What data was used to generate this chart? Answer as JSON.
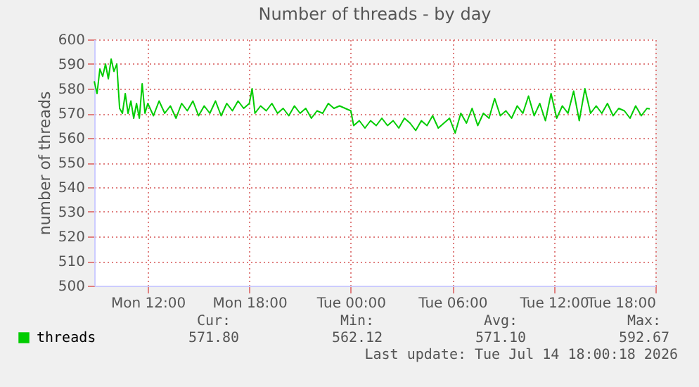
{
  "chart_data": {
    "type": "line",
    "title": "Number of threads - by day",
    "ylabel": "number of threads",
    "x": [
      "2026-07-13T08:50",
      "2026-07-13T09:00",
      "2026-07-13T09:10",
      "2026-07-13T09:20",
      "2026-07-13T09:30",
      "2026-07-13T09:40",
      "2026-07-13T09:50",
      "2026-07-13T10:00",
      "2026-07-13T10:10",
      "2026-07-13T10:20",
      "2026-07-13T10:30",
      "2026-07-13T10:40",
      "2026-07-13T10:50",
      "2026-07-13T11:00",
      "2026-07-13T11:10",
      "2026-07-13T11:20",
      "2026-07-13T11:30",
      "2026-07-13T11:40",
      "2026-07-13T11:50",
      "2026-07-13T12:00",
      "2026-07-13T12:20",
      "2026-07-13T12:40",
      "2026-07-13T13:00",
      "2026-07-13T13:20",
      "2026-07-13T13:40",
      "2026-07-13T14:00",
      "2026-07-13T14:20",
      "2026-07-13T14:40",
      "2026-07-13T15:00",
      "2026-07-13T15:20",
      "2026-07-13T15:40",
      "2026-07-13T16:00",
      "2026-07-13T16:20",
      "2026-07-13T16:40",
      "2026-07-13T17:00",
      "2026-07-13T17:20",
      "2026-07-13T17:40",
      "2026-07-13T18:00",
      "2026-07-13T18:10",
      "2026-07-13T18:20",
      "2026-07-13T18:40",
      "2026-07-13T19:00",
      "2026-07-13T19:20",
      "2026-07-13T19:40",
      "2026-07-13T20:00",
      "2026-07-13T20:20",
      "2026-07-13T20:40",
      "2026-07-13T21:00",
      "2026-07-13T21:20",
      "2026-07-13T21:40",
      "2026-07-13T22:00",
      "2026-07-13T22:20",
      "2026-07-13T22:40",
      "2026-07-13T23:00",
      "2026-07-13T23:20",
      "2026-07-13T23:40",
      "2026-07-14T00:00",
      "2026-07-14T00:10",
      "2026-07-14T00:30",
      "2026-07-14T00:50",
      "2026-07-14T01:10",
      "2026-07-14T01:30",
      "2026-07-14T01:50",
      "2026-07-14T02:10",
      "2026-07-14T02:30",
      "2026-07-14T02:50",
      "2026-07-14T03:10",
      "2026-07-14T03:30",
      "2026-07-14T03:50",
      "2026-07-14T04:10",
      "2026-07-14T04:30",
      "2026-07-14T04:50",
      "2026-07-14T05:10",
      "2026-07-14T05:30",
      "2026-07-14T05:50",
      "2026-07-14T06:10",
      "2026-07-14T06:30",
      "2026-07-14T06:50",
      "2026-07-14T07:10",
      "2026-07-14T07:30",
      "2026-07-14T07:50",
      "2026-07-14T08:10",
      "2026-07-14T08:30",
      "2026-07-14T08:50",
      "2026-07-14T09:10",
      "2026-07-14T09:30",
      "2026-07-14T09:50",
      "2026-07-14T10:10",
      "2026-07-14T10:30",
      "2026-07-14T10:50",
      "2026-07-14T11:10",
      "2026-07-14T11:30",
      "2026-07-14T11:50",
      "2026-07-14T12:10",
      "2026-07-14T12:30",
      "2026-07-14T12:50",
      "2026-07-14T13:10",
      "2026-07-14T13:30",
      "2026-07-14T13:50",
      "2026-07-14T14:10",
      "2026-07-14T14:30",
      "2026-07-14T14:50",
      "2026-07-14T15:10",
      "2026-07-14T15:30",
      "2026-07-14T15:50",
      "2026-07-14T16:10",
      "2026-07-14T16:30",
      "2026-07-14T16:50",
      "2026-07-14T17:10",
      "2026-07-14T17:30",
      "2026-07-14T17:40"
    ],
    "series": [
      {
        "name": "threads",
        "color": "#00cc00",
        "values": [
          583,
          578,
          588,
          585,
          590,
          584,
          592,
          587,
          590,
          572,
          570,
          578,
          570,
          575,
          568,
          574,
          568,
          582,
          570,
          574,
          569,
          575,
          570,
          573,
          568,
          574,
          571,
          575,
          569,
          573,
          570,
          575,
          569,
          574,
          571,
          575,
          572,
          574,
          580,
          570,
          573,
          571,
          574,
          570,
          572,
          569,
          573,
          570,
          572,
          568,
          571,
          570,
          574,
          572,
          573,
          572,
          571,
          565,
          567,
          564,
          567,
          565,
          568,
          565,
          567,
          564,
          568,
          566,
          563,
          567,
          565,
          569,
          564,
          566,
          568,
          562,
          570,
          566,
          572,
          565,
          570,
          568,
          576,
          569,
          571,
          568,
          573,
          570,
          577,
          569,
          574,
          567,
          578,
          568,
          573,
          570,
          579,
          567,
          580,
          570,
          573,
          570,
          574,
          569,
          572,
          571,
          568,
          573,
          569,
          572,
          571.8
        ]
      }
    ],
    "xlim": [
      "2026-07-13T08:50",
      "2026-07-14T18:00"
    ],
    "xticks": [
      {
        "value": "2026-07-13T12:00",
        "label": "Mon 12:00"
      },
      {
        "value": "2026-07-13T18:00",
        "label": "Mon 18:00"
      },
      {
        "value": "2026-07-14T00:00",
        "label": "Tue 00:00"
      },
      {
        "value": "2026-07-14T06:00",
        "label": "Tue 06:00"
      },
      {
        "value": "2026-07-14T12:00",
        "label": "Tue 12:00"
      },
      {
        "value": "2026-07-14T18:00",
        "label": "Tue 18:00"
      }
    ],
    "ylim": [
      500,
      600
    ],
    "yticks": [
      500,
      510,
      520,
      530,
      540,
      550,
      560,
      570,
      580,
      590,
      600
    ],
    "grid": true,
    "legend": "bottom left",
    "marker": "none",
    "line_style": "solid",
    "annotations": [
      "Cur:",
      "Min:",
      "Avg:",
      "Max:",
      "571.80",
      "562.12",
      "571.10",
      "592.67",
      "Last update: Tue Jul 14 18:00:18 2026"
    ]
  }
}
